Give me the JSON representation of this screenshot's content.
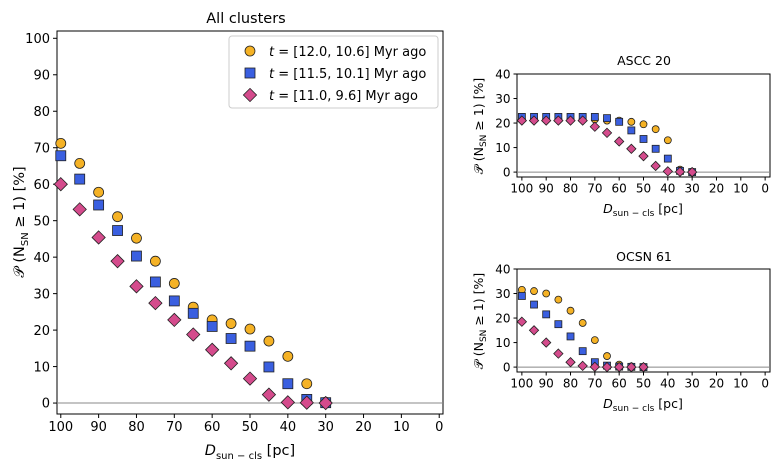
{
  "legend": {
    "placement": "top-right",
    "entries": [
      {
        "prefix": "t = ",
        "range": "[12.0, 10.6]",
        "suffix": " Myr ago",
        "marker": "circle",
        "color": "#f5b225"
      },
      {
        "prefix": "t = ",
        "range": "[11.5, 10.1]",
        "suffix": " Myr ago",
        "marker": "square",
        "color": "#3a5fe0"
      },
      {
        "prefix": "t = ",
        "range": "[11.0, 9.6]",
        "suffix": " Myr ago",
        "marker": "diamond",
        "color": "#d44b8c"
      }
    ]
  },
  "chart_data": [
    {
      "id": "main",
      "type": "scatter",
      "title": "All clusters",
      "xlabel_main": "D",
      "xlabel_sub": "sun − cls",
      "xlabel_unit": " [pc]",
      "ylabel_main": "𝒫 (N",
      "ylabel_sub": "SN",
      "ylabel_tail": " ≥ 1) [%]",
      "xlim": [
        101,
        -1
      ],
      "ylim": [
        -3,
        102
      ],
      "xticks": [
        100,
        90,
        80,
        70,
        60,
        50,
        40,
        30,
        20,
        10,
        0
      ],
      "yticks": [
        0,
        10,
        20,
        30,
        40,
        50,
        60,
        70,
        80,
        90,
        100
      ],
      "hline": 0,
      "grid": false,
      "series": [
        {
          "marker": "circle",
          "color": "#f5b225",
          "x": [
            100,
            95,
            90,
            85,
            80,
            75,
            70,
            65,
            60,
            55,
            50,
            45,
            40,
            35,
            30
          ],
          "y": [
            71.2,
            65.7,
            57.8,
            51.1,
            45.2,
            38.9,
            32.8,
            26.3,
            22.8,
            21.8,
            20.3,
            17.0,
            12.8,
            5.3,
            0.2
          ]
        },
        {
          "marker": "square",
          "color": "#3a5fe0",
          "x": [
            100,
            95,
            90,
            85,
            80,
            75,
            70,
            65,
            60,
            55,
            50,
            45,
            40,
            35,
            30
          ],
          "y": [
            67.8,
            61.4,
            54.3,
            47.3,
            40.3,
            33.2,
            28.0,
            24.6,
            21.0,
            17.7,
            15.6,
            9.9,
            5.3,
            1.0,
            0.1
          ]
        },
        {
          "marker": "diamond",
          "color": "#d44b8c",
          "x": [
            100,
            95,
            90,
            85,
            80,
            75,
            70,
            65,
            60,
            55,
            50,
            45,
            40,
            35,
            30
          ],
          "y": [
            60.0,
            53.1,
            45.4,
            38.9,
            32.0,
            27.4,
            22.8,
            18.8,
            14.6,
            10.9,
            6.7,
            2.3,
            0.2,
            0.1,
            0.0
          ]
        }
      ]
    },
    {
      "id": "ascc",
      "type": "scatter",
      "title": "ASCC 20",
      "xlabel_main": "D",
      "xlabel_sub": "sun − cls",
      "xlabel_unit": " [pc]",
      "ylabel_main": "𝒫 (N",
      "ylabel_sub": "SN",
      "ylabel_tail": " ≥ 1) [%]",
      "xlim": [
        102,
        -2
      ],
      "ylim": [
        -2,
        40
      ],
      "xticks": [
        100,
        90,
        80,
        70,
        60,
        50,
        40,
        30,
        20,
        10,
        0
      ],
      "yticks": [
        0,
        10,
        20,
        30,
        40
      ],
      "hline": 0,
      "grid": false,
      "series": [
        {
          "marker": "circle",
          "color": "#f5b225",
          "x": [
            100,
            95,
            90,
            85,
            80,
            75,
            70,
            65,
            60,
            55,
            50,
            45,
            40,
            35,
            30
          ],
          "y": [
            21.5,
            21.5,
            21.5,
            21.5,
            21.5,
            21.5,
            21.5,
            21.0,
            21.0,
            20.5,
            19.5,
            17.5,
            13.0,
            1.0,
            0.2
          ]
        },
        {
          "marker": "square",
          "color": "#3a5fe0",
          "x": [
            100,
            95,
            90,
            85,
            80,
            75,
            70,
            65,
            60,
            55,
            50,
            45,
            40,
            35,
            30
          ],
          "y": [
            22.5,
            22.5,
            22.5,
            22.5,
            22.5,
            22.5,
            22.5,
            22.0,
            20.5,
            17.0,
            13.5,
            9.5,
            5.5,
            0.5,
            0.0
          ]
        },
        {
          "marker": "diamond",
          "color": "#d44b8c",
          "x": [
            100,
            95,
            90,
            85,
            80,
            75,
            70,
            65,
            60,
            55,
            50,
            45,
            40,
            35,
            30
          ],
          "y": [
            21.0,
            21.0,
            21.0,
            21.0,
            21.0,
            21.0,
            18.5,
            16.0,
            12.5,
            9.5,
            6.5,
            2.5,
            0.3,
            0.1,
            0.0
          ]
        }
      ]
    },
    {
      "id": "ocsn",
      "type": "scatter",
      "title": "OCSN 61",
      "xlabel_main": "D",
      "xlabel_sub": "sun − cls",
      "xlabel_unit": " [pc]",
      "ylabel_main": "𝒫 (N",
      "ylabel_sub": "SN",
      "ylabel_tail": " ≥ 1) [%]",
      "xlim": [
        102,
        -2
      ],
      "ylim": [
        -2,
        40
      ],
      "xticks": [
        100,
        90,
        80,
        70,
        60,
        50,
        40,
        30,
        20,
        10,
        0
      ],
      "yticks": [
        0,
        10,
        20,
        30,
        40
      ],
      "hline": 0,
      "grid": false,
      "series": [
        {
          "marker": "circle",
          "color": "#f5b225",
          "x": [
            100,
            95,
            90,
            85,
            80,
            75,
            70,
            65,
            60,
            55,
            50
          ],
          "y": [
            31.5,
            31.0,
            30.0,
            27.5,
            23.0,
            18.0,
            11.0,
            4.5,
            1.0,
            0.3,
            0.1
          ]
        },
        {
          "marker": "square",
          "color": "#3a5fe0",
          "x": [
            100,
            95,
            90,
            85,
            80,
            75,
            70,
            65,
            60,
            55,
            50
          ],
          "y": [
            29.0,
            25.5,
            21.5,
            17.5,
            12.5,
            6.5,
            2.0,
            0.6,
            0.2,
            0.1,
            0.0
          ]
        },
        {
          "marker": "diamond",
          "color": "#d44b8c",
          "x": [
            100,
            95,
            90,
            85,
            80,
            75,
            70,
            65,
            60,
            55,
            50
          ],
          "y": [
            18.5,
            15.0,
            10.0,
            5.5,
            2.0,
            0.5,
            0.1,
            0.0,
            0.0,
            0.0,
            0.0
          ]
        }
      ]
    }
  ]
}
